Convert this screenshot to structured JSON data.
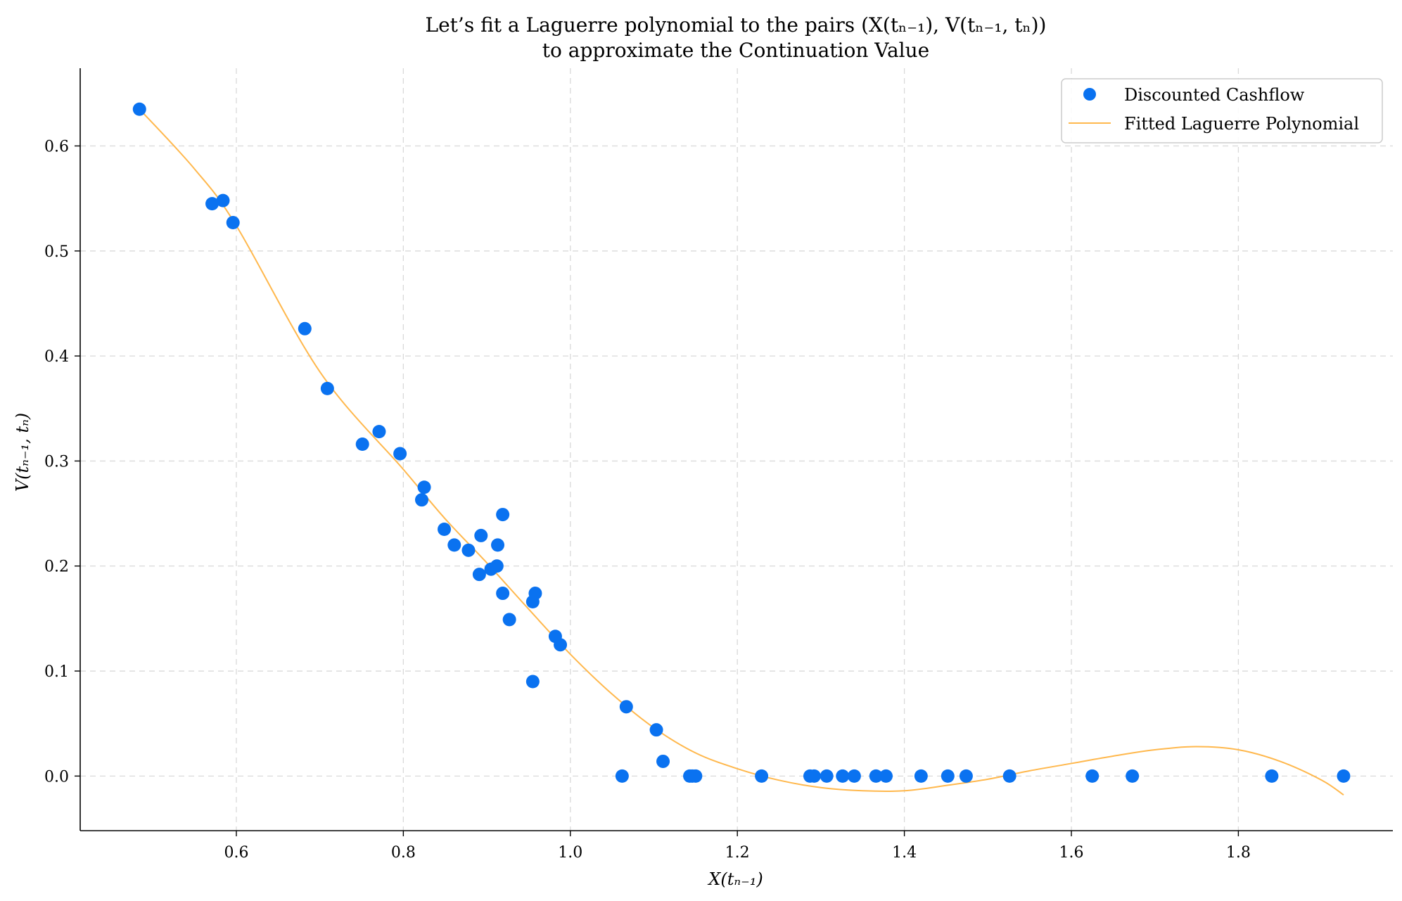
{
  "chart_data": {
    "type": "scatter",
    "title_line1": "Let’s fit a Laguerre polynomial to the pairs (X(tₙ₋₁), V(tₙ₋₁, tₙ))",
    "title_line2": "to approximate the Continuation Value",
    "xlabel": "X(tₙ₋₁)",
    "ylabel": "V(tₙ₋₁, tₙ)",
    "xlim": [
      0.413,
      1.985
    ],
    "ylim": [
      -0.052,
      0.674
    ],
    "xticks": [
      0.6,
      0.8,
      1.0,
      1.2,
      1.4,
      1.6,
      1.8
    ],
    "xtick_labels": [
      "0.6",
      "0.8",
      "1.0",
      "1.2",
      "1.4",
      "1.6",
      "1.8"
    ],
    "yticks": [
      0.0,
      0.1,
      0.2,
      0.3,
      0.4,
      0.5,
      0.6
    ],
    "ytick_labels": [
      "0.0",
      "0.1",
      "0.2",
      "0.3",
      "0.4",
      "0.5",
      "0.6"
    ],
    "grid": true,
    "legend_position": "top-right",
    "series": [
      {
        "name": "Discounted Cashflow",
        "kind": "scatter",
        "color": "#0a72f0",
        "points": [
          [
            0.484,
            0.635
          ],
          [
            0.571,
            0.545
          ],
          [
            0.584,
            0.548
          ],
          [
            0.596,
            0.527
          ],
          [
            0.682,
            0.426
          ],
          [
            0.709,
            0.369
          ],
          [
            0.751,
            0.316
          ],
          [
            0.771,
            0.328
          ],
          [
            0.796,
            0.307
          ],
          [
            0.822,
            0.263
          ],
          [
            0.825,
            0.275
          ],
          [
            0.849,
            0.235
          ],
          [
            0.861,
            0.22
          ],
          [
            0.878,
            0.215
          ],
          [
            0.891,
            0.192
          ],
          [
            0.893,
            0.229
          ],
          [
            0.905,
            0.197
          ],
          [
            0.912,
            0.2
          ],
          [
            0.913,
            0.22
          ],
          [
            0.919,
            0.249
          ],
          [
            0.919,
            0.174
          ],
          [
            0.927,
            0.149
          ],
          [
            0.955,
            0.09
          ],
          [
            0.955,
            0.166
          ],
          [
            0.958,
            0.174
          ],
          [
            0.982,
            0.133
          ],
          [
            0.988,
            0.125
          ],
          [
            1.062,
            0.0
          ],
          [
            1.067,
            0.066
          ],
          [
            1.103,
            0.044
          ],
          [
            1.111,
            0.014
          ],
          [
            1.143,
            0.0
          ],
          [
            1.146,
            0.0
          ],
          [
            1.15,
            0.0
          ],
          [
            1.229,
            0.0
          ],
          [
            1.287,
            0.0
          ],
          [
            1.292,
            0.0
          ],
          [
            1.307,
            0.0
          ],
          [
            1.326,
            0.0
          ],
          [
            1.34,
            0.0
          ],
          [
            1.366,
            0.0
          ],
          [
            1.378,
            0.0
          ],
          [
            1.42,
            0.0
          ],
          [
            1.452,
            0.0
          ],
          [
            1.474,
            0.0
          ],
          [
            1.526,
            0.0
          ],
          [
            1.625,
            0.0
          ],
          [
            1.673,
            0.0
          ],
          [
            1.84,
            0.0
          ],
          [
            1.926,
            0.0
          ]
        ]
      },
      {
        "name": "Fitted Laguerre Polynomial",
        "kind": "line",
        "color": "#ffb84d",
        "points": [
          [
            0.484,
            0.635
          ],
          [
            0.55,
            0.578
          ],
          [
            0.6,
            0.524
          ],
          [
            0.7,
            0.385
          ],
          [
            0.8,
            0.292
          ],
          [
            0.85,
            0.245
          ],
          [
            0.9,
            0.203
          ],
          [
            0.95,
            0.159
          ],
          [
            1.0,
            0.116
          ],
          [
            1.05,
            0.078
          ],
          [
            1.1,
            0.046
          ],
          [
            1.15,
            0.022
          ],
          [
            1.2,
            0.007
          ],
          [
            1.25,
            -0.004
          ],
          [
            1.3,
            -0.011
          ],
          [
            1.35,
            -0.014
          ],
          [
            1.4,
            -0.014
          ],
          [
            1.45,
            -0.009
          ],
          [
            1.5,
            -0.003
          ],
          [
            1.55,
            0.005
          ],
          [
            1.6,
            0.012
          ],
          [
            1.65,
            0.019
          ],
          [
            1.7,
            0.025
          ],
          [
            1.75,
            0.028
          ],
          [
            1.8,
            0.025
          ],
          [
            1.85,
            0.014
          ],
          [
            1.9,
            -0.004
          ],
          [
            1.926,
            -0.018
          ]
        ]
      }
    ]
  }
}
